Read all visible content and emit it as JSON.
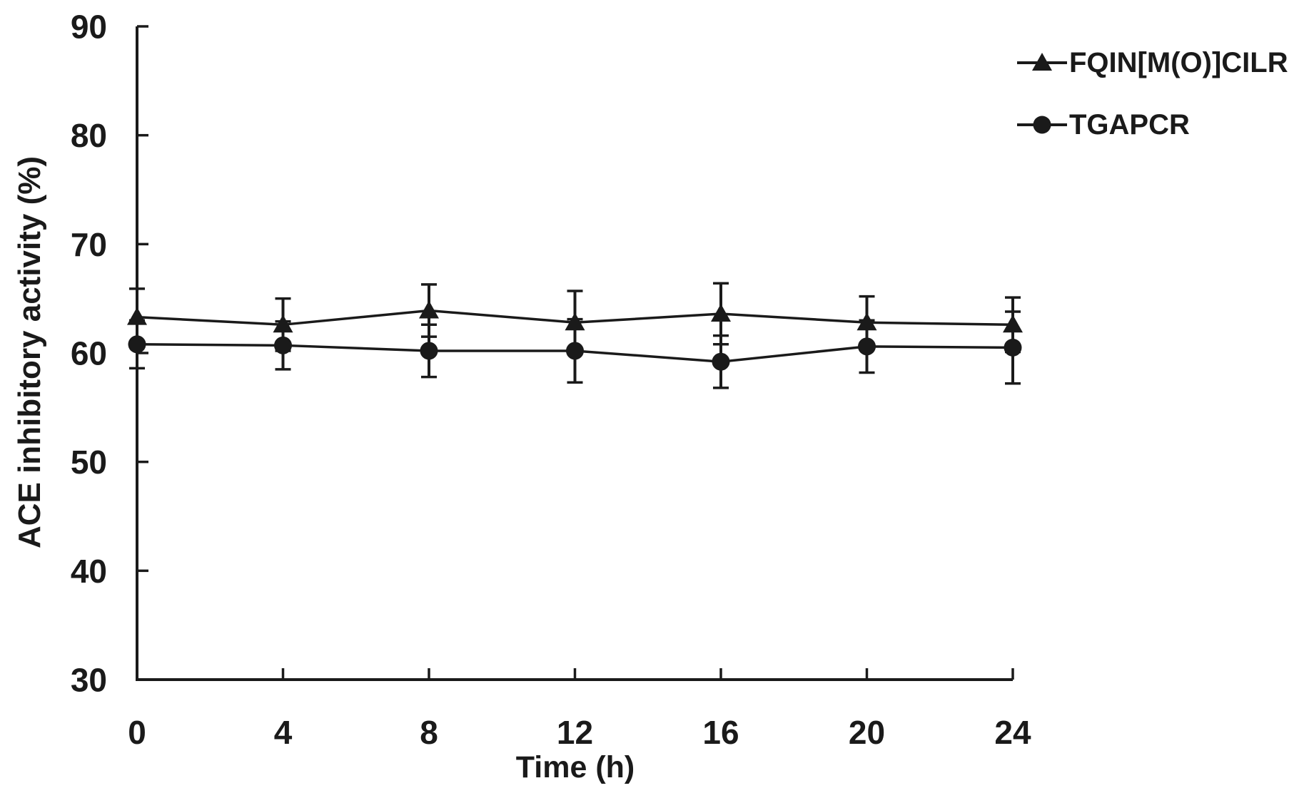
{
  "figure": {
    "background": "#ffffff",
    "ink_color": "#1a1a1a"
  },
  "chart_data": {
    "type": "line",
    "title": "",
    "xlabel": "Time (h)",
    "ylabel": "ACE inhibitory activity (%)",
    "x": [
      0,
      4,
      8,
      12,
      16,
      20,
      24
    ],
    "xticks": [
      0,
      4,
      8,
      12,
      16,
      20,
      24
    ],
    "yticks": [
      30,
      40,
      50,
      60,
      70,
      80,
      90
    ],
    "xlim": [
      0,
      24
    ],
    "ylim": [
      30,
      90
    ],
    "grid": false,
    "legend_position": "top-right",
    "error_bars": true,
    "series": [
      {
        "name": "FQIN[M(O)]CILR",
        "marker": "triangle",
        "color": "#1a1a1a",
        "values": [
          63.3,
          62.6,
          63.9,
          62.8,
          63.6,
          62.8,
          62.6
        ],
        "errors": [
          2.6,
          2.4,
          2.4,
          2.9,
          2.8,
          2.4,
          2.5
        ]
      },
      {
        "name": "TGAPCR",
        "marker": "circle",
        "color": "#1a1a1a",
        "values": [
          60.8,
          60.7,
          60.2,
          60.2,
          59.2,
          60.6,
          60.5
        ],
        "errors": [
          2.2,
          2.2,
          2.4,
          2.9,
          2.4,
          2.4,
          3.3
        ]
      }
    ]
  }
}
